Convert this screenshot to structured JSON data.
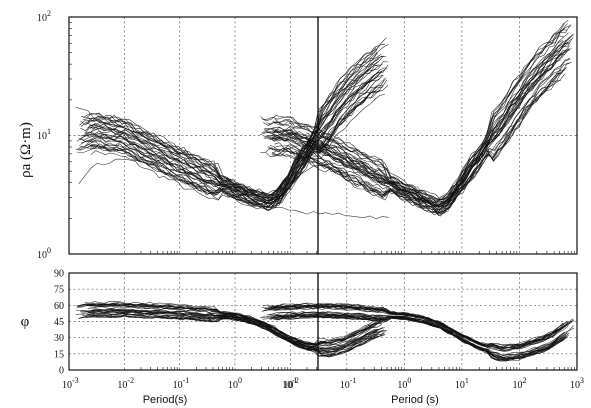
{
  "chart_data": {
    "type": "line",
    "x_scale": "log",
    "xlim": [
      0.001,
      1000
    ],
    "x_tick_labels": [
      {
        "base": "10",
        "exp": "-3"
      },
      {
        "base": "10",
        "exp": "-2"
      },
      {
        "base": "10",
        "exp": "-1"
      },
      {
        "base": "10",
        "exp": "0"
      },
      {
        "base": "10",
        "exp": "1"
      },
      {
        "base": "10",
        "exp": "2"
      },
      {
        "base": "10",
        "exp": "3"
      }
    ],
    "xlabel_left": "Period(s)",
    "xlabel_right": "Period (s)",
    "rho_panel": {
      "ylabel": "ρa (Ω·m)",
      "y_scale": "log",
      "ylim": [
        1,
        100
      ],
      "y_tick_labels": [
        {
          "base": "10",
          "exp": "0"
        },
        {
          "base": "10",
          "exp": "1"
        },
        {
          "base": "10",
          "exp": "2"
        }
      ],
      "left_band_trend": {
        "x": [
          0.0013,
          0.003,
          0.01,
          0.03,
          0.1,
          0.3,
          1,
          2,
          4,
          6,
          10,
          20,
          50,
          100,
          300,
          600
        ],
        "y": [
          9.5,
          10.5,
          9.5,
          7.2,
          5.5,
          4.3,
          3.4,
          3.0,
          2.7,
          3.0,
          4.2,
          7.0,
          13,
          20,
          32,
          40
        ]
      },
      "left_outliers": [
        {
          "x": [
            0.0015,
            0.003,
            0.01,
            0.05,
            0.3,
            1,
            4,
            10,
            50,
            200,
            600
          ],
          "y": [
            4.0,
            5.5,
            6.5,
            5.5,
            4.2,
            3.6,
            2.9,
            4.2,
            6.0,
            5.0,
            4.1
          ]
        },
        {
          "x": [
            0.0013,
            0.003,
            0.01,
            0.05,
            0.3,
            2,
            5,
            10,
            30,
            100,
            600
          ],
          "y": [
            18,
            14,
            12,
            8,
            5,
            3.2,
            2.6,
            2.4,
            2.2,
            2.1,
            2.0
          ]
        }
      ],
      "right_band_trend": {
        "x": [
          0.003,
          0.01,
          0.03,
          0.1,
          0.3,
          1,
          2,
          4,
          6,
          10,
          20,
          50,
          100,
          300,
          900
        ],
        "y": [
          10,
          9.8,
          8,
          6,
          4.5,
          3.4,
          2.9,
          2.5,
          2.8,
          4.0,
          6.5,
          12,
          20,
          38,
          62
        ]
      }
    },
    "phase_panel": {
      "ylabel": "φ",
      "ylim": [
        0,
        90
      ],
      "y_ticks": [
        0,
        15,
        30,
        45,
        60,
        75,
        90
      ],
      "y_tick_labels": [
        "0",
        "15",
        "30",
        "45",
        "60",
        "75",
        "90"
      ],
      "left_band_trend": {
        "x": [
          0.0013,
          0.003,
          0.01,
          0.03,
          0.1,
          0.3,
          1,
          2,
          4,
          10,
          20,
          50,
          100,
          300,
          600
        ],
        "y": [
          55,
          56,
          56,
          55,
          54,
          52,
          50,
          46,
          40,
          28,
          22,
          20,
          24,
          36,
          42
        ]
      },
      "right_band_trend": {
        "x": [
          0.003,
          0.01,
          0.03,
          0.1,
          0.3,
          1,
          2,
          4,
          10,
          20,
          50,
          100,
          300,
          900
        ],
        "y": [
          52,
          54,
          55,
          54,
          52,
          50,
          47,
          42,
          30,
          22,
          15,
          17,
          25,
          42
        ]
      }
    }
  }
}
